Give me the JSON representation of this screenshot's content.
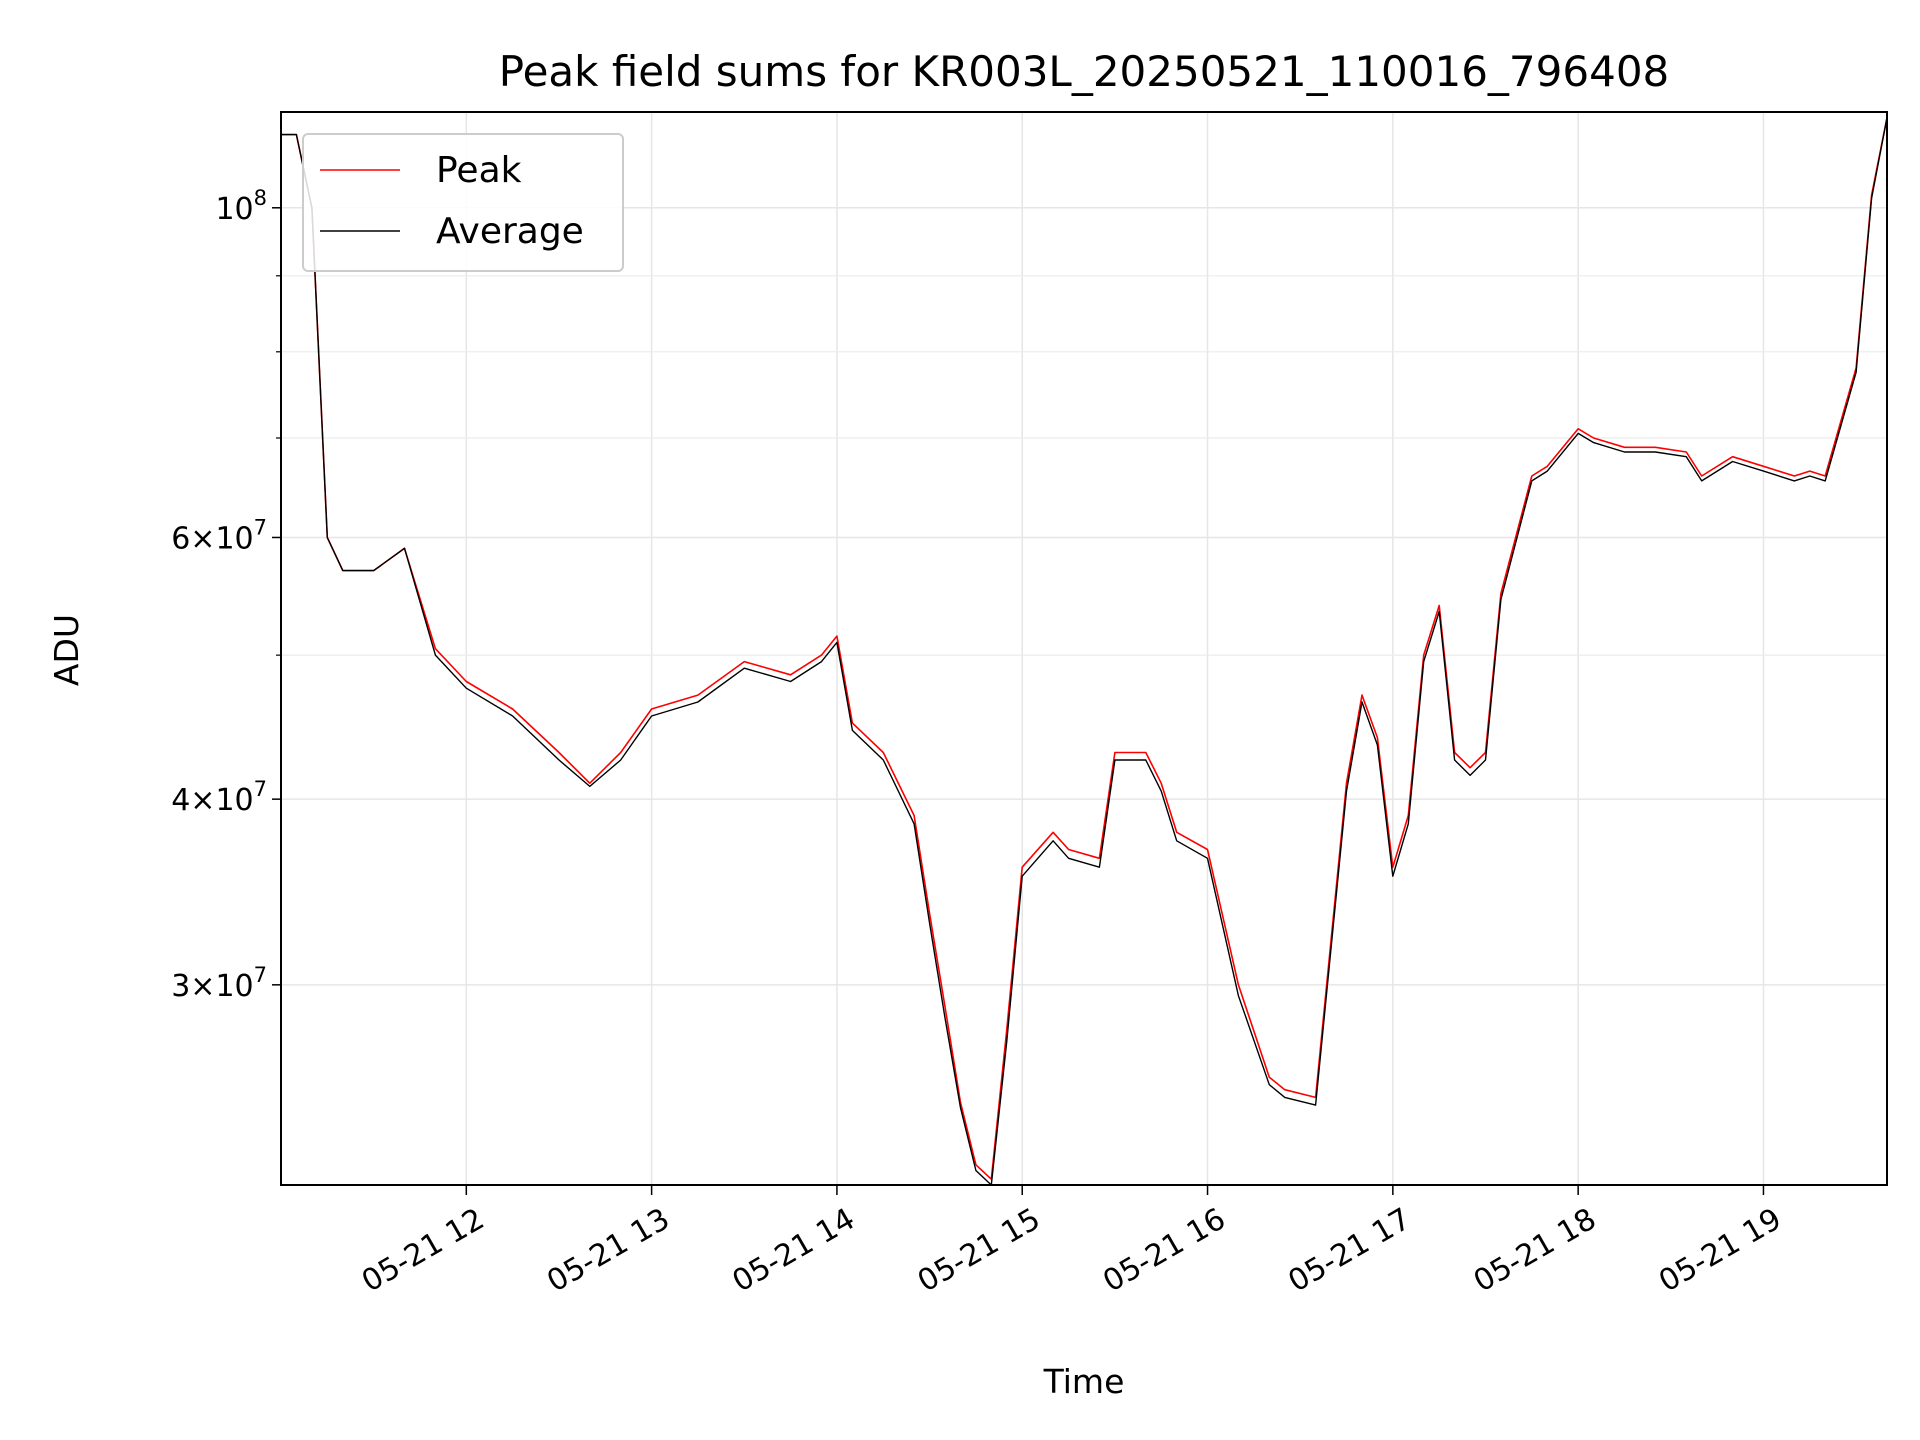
{
  "chart_data": {
    "type": "line",
    "title": "Peak field sums for KR003L_20250521_110016_796408",
    "xlabel": "Time",
    "ylabel": "ADU",
    "yscale": "log",
    "ylim": [
      22000000,
      116000000
    ],
    "xlim": [
      "05-21 11:00",
      "05-21 19:40"
    ],
    "grid": true,
    "legend_position": "top-left",
    "x_ticks": [
      "05-21 12",
      "05-21 13",
      "05-21 14",
      "05-21 15",
      "05-21 16",
      "05-21 17",
      "05-21 18",
      "05-21 19"
    ],
    "y_ticks": [
      {
        "value": 100000000,
        "mantissa": "",
        "exp": "8"
      },
      {
        "value": 60000000,
        "mantissa": "6",
        "exp": "7"
      },
      {
        "value": 40000000,
        "mantissa": "4",
        "exp": "7"
      },
      {
        "value": 30000000,
        "mantissa": "3",
        "exp": "7"
      }
    ],
    "y_minor_ticks": [
      50000000,
      70000000,
      80000000,
      90000000
    ],
    "x": [
      "11:00",
      "11:05",
      "11:10",
      "11:15",
      "11:20",
      "11:30",
      "11:40",
      "11:50",
      "12:00",
      "12:15",
      "12:30",
      "12:40",
      "12:50",
      "13:00",
      "13:15",
      "13:30",
      "13:45",
      "13:55",
      "14:00",
      "14:05",
      "14:15",
      "14:25",
      "14:30",
      "14:35",
      "14:40",
      "14:45",
      "14:50",
      "14:55",
      "15:00",
      "15:10",
      "15:15",
      "15:25",
      "15:30",
      "15:40",
      "15:45",
      "15:50",
      "16:00",
      "16:10",
      "16:20",
      "16:25",
      "16:35",
      "16:45",
      "16:50",
      "16:55",
      "17:00",
      "17:05",
      "17:10",
      "17:15",
      "17:20",
      "17:25",
      "17:30",
      "17:35",
      "17:45",
      "17:50",
      "18:00",
      "18:05",
      "18:15",
      "18:25",
      "18:35",
      "18:40",
      "18:50",
      "19:00",
      "19:10",
      "19:15",
      "19:20",
      "19:30",
      "19:35",
      "19:40"
    ],
    "series": [
      {
        "name": "Peak",
        "color": "#ff0000",
        "values": [
          112000000,
          112000000,
          100000000,
          60000000,
          57000000,
          57000000,
          59000000,
          50500000,
          48000000,
          46000000,
          43000000,
          41000000,
          43000000,
          46000000,
          47000000,
          49500000,
          48500000,
          50000000,
          51500000,
          45000000,
          43000000,
          39000000,
          33500000,
          29000000,
          25000000,
          22700000,
          22200000,
          28000000,
          36000000,
          38000000,
          37000000,
          36500000,
          43000000,
          43000000,
          41000000,
          38000000,
          37000000,
          30000000,
          26000000,
          25500000,
          25200000,
          41000000,
          47000000,
          44000000,
          36000000,
          39000000,
          50000000,
          54000000,
          43000000,
          42000000,
          43000000,
          55000000,
          66000000,
          67000000,
          71000000,
          70000000,
          69000000,
          69000000,
          68500000,
          66000000,
          68000000,
          67000000,
          66000000,
          66500000,
          66000000,
          78000000,
          102000000,
          115000000
        ]
      },
      {
        "name": "Average",
        "color": "#000000",
        "values": [
          112000000,
          112000000,
          100000000,
          60000000,
          57000000,
          57000000,
          59000000,
          50000000,
          47500000,
          45500000,
          42500000,
          40800000,
          42500000,
          45500000,
          46500000,
          49000000,
          48000000,
          49500000,
          51000000,
          44500000,
          42500000,
          38500000,
          33000000,
          28500000,
          24800000,
          22500000,
          22000000,
          27500000,
          35500000,
          37500000,
          36500000,
          36000000,
          42500000,
          42500000,
          40500000,
          37500000,
          36500000,
          29500000,
          25700000,
          25200000,
          24900000,
          40500000,
          46500000,
          43500000,
          35500000,
          38500000,
          49500000,
          53500000,
          42500000,
          41500000,
          42500000,
          54500000,
          65500000,
          66500000,
          70500000,
          69500000,
          68500000,
          68500000,
          68000000,
          65500000,
          67500000,
          66500000,
          65500000,
          66000000,
          65500000,
          77500000,
          101500000,
          115000000
        ]
      }
    ]
  }
}
